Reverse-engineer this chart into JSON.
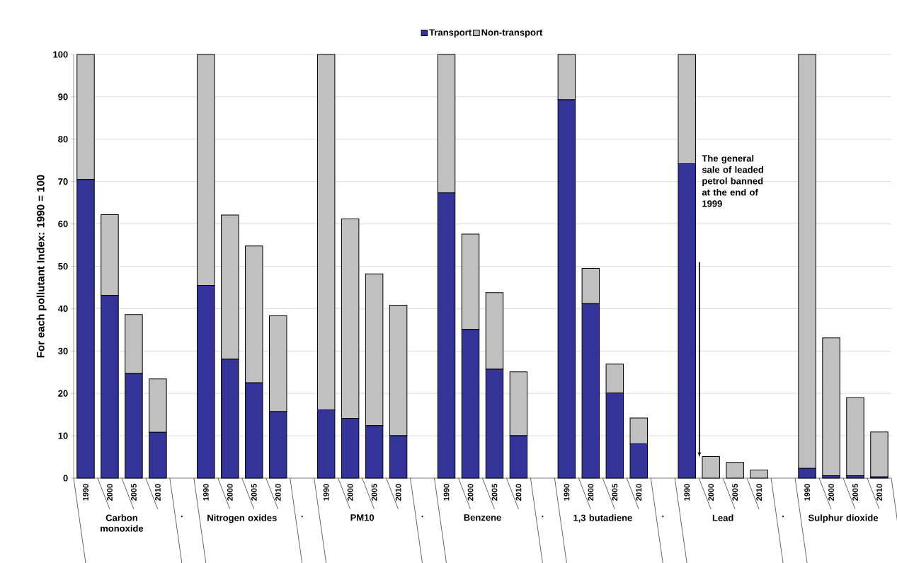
{
  "chart_data": {
    "type": "bar",
    "stacked": true,
    "ylabel": "For each pollutant Index: 1990 = 100",
    "categories": [
      "1990",
      "2000",
      "2005",
      "2010",
      null,
      "1990",
      "2000",
      "2005",
      "2010",
      null,
      "1990",
      "2000",
      "2005",
      "2010",
      null,
      "1990",
      "2000",
      "2005",
      "2010",
      null,
      "1990",
      "2000",
      "2005",
      "2010",
      null,
      "1990",
      "2000",
      "2005",
      "2010",
      null,
      "1990",
      "2000",
      "2005",
      "2010"
    ],
    "series": [
      {
        "name": "Transport",
        "color": "#333399",
        "values": [
          70.5,
          43.1,
          24.7,
          10.8,
          null,
          45.5,
          28.1,
          22.5,
          15.7,
          null,
          16.1,
          14.1,
          12.4,
          10.0,
          null,
          67.3,
          35.1,
          25.7,
          10.0,
          null,
          89.3,
          41.2,
          20.1,
          8.1,
          null,
          74.2,
          0,
          0,
          0,
          null,
          2.3,
          0.6,
          0.6,
          0.3
        ]
      },
      {
        "name": "Non-transport",
        "color": "#c0c0c0",
        "values": [
          29.5,
          19.1,
          13.9,
          12.6,
          null,
          54.5,
          34.0,
          32.3,
          22.6,
          null,
          83.9,
          47.1,
          35.8,
          30.8,
          null,
          32.7,
          22.5,
          18.1,
          15.1,
          null,
          10.7,
          8.3,
          6.8,
          6.1,
          null,
          25.8,
          5.1,
          3.7,
          1.9,
          null,
          97.7,
          32.5,
          18.4,
          10.6
        ]
      }
    ],
    "ylim": [
      0,
      100
    ],
    "yticks": [
      0,
      10,
      20,
      30,
      40,
      50,
      60,
      70,
      80,
      90,
      100
    ],
    "grid": "y",
    "legend": "top",
    "annotations": [
      "Carbon monoxide",
      "Nitrogen oxides",
      "PM10",
      "Benzene",
      "1,3 butadiene",
      "Lead",
      "Sulphur dioxide",
      ".",
      ".",
      ".",
      ".",
      ".",
      ".",
      "The general sale of leaded petrol banned at the end of 1999"
    ]
  }
}
